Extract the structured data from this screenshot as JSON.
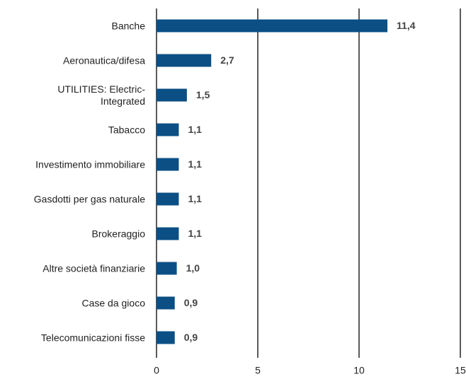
{
  "chart_data": {
    "type": "hbar",
    "categories": [
      "Banche",
      "Aeronautica/difesa",
      "UTILITIES: Electric-Integrated",
      "Tabacco",
      "Investimento immobiliare",
      "Gasdotti per gas naturale",
      "Brokeraggio",
      "Altre società finanziarie",
      "Case da gioco",
      "Telecomunicazioni fisse"
    ],
    "values": [
      11.4,
      2.7,
      1.5,
      1.1,
      1.1,
      1.1,
      1.1,
      1.0,
      0.9,
      0.9
    ],
    "value_labels": [
      "11,4",
      "2,7",
      "1,5",
      "1,1",
      "1,1",
      "1,1",
      "1,1",
      "1,0",
      "0,9",
      "0,9"
    ],
    "color": "#0b4f84",
    "xlim": [
      0,
      15
    ],
    "xticks": [
      0,
      5,
      10,
      15
    ],
    "grid": true
  }
}
